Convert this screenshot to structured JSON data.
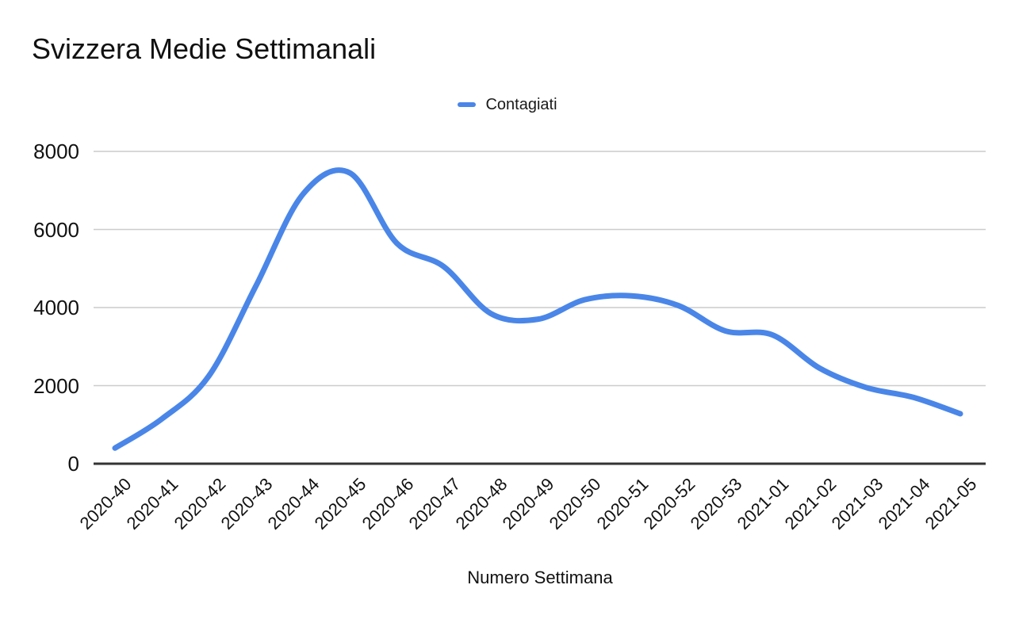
{
  "title": "Svizzera Medie Settimanali",
  "legend": {
    "label": "Contagiati",
    "color": "#4a86e8"
  },
  "x_axis_title": "Numero Settimana",
  "chart_data": {
    "type": "line",
    "smooth": true,
    "title": "Svizzera Medie Settimanali",
    "xlabel": "Numero Settimana",
    "ylabel": "",
    "categories": [
      "2020-40",
      "2020-41",
      "2020-42",
      "2020-43",
      "2020-44",
      "2020-45",
      "2020-46",
      "2020-47",
      "2020-48",
      "2020-49",
      "2020-50",
      "2020-51",
      "2020-52",
      "2020-53",
      "2021-01",
      "2021-02",
      "2021-03",
      "2021-04",
      "2021-05"
    ],
    "series": [
      {
        "name": "Contagiati",
        "color": "#4a86e8",
        "values": [
          400,
          1150,
          2250,
          4550,
          6900,
          7450,
          5650,
          5050,
          3850,
          3700,
          4200,
          4300,
          4050,
          3400,
          3300,
          2450,
          1950,
          1700,
          1280
        ]
      }
    ],
    "ylim": [
      0,
      8000
    ],
    "y_ticks": [
      0,
      2000,
      4000,
      6000,
      8000
    ],
    "grid": true,
    "legend_position": "top-center",
    "axis_color": "#333333",
    "gridline_color": "#cccccc"
  }
}
